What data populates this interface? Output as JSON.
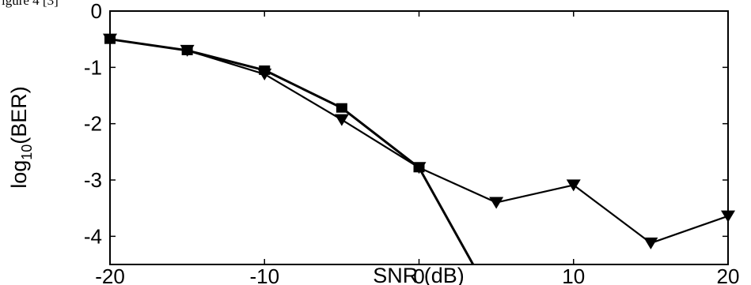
{
  "header_fragment": "igure 4 [3]",
  "chart_data": {
    "type": "line",
    "xlabel": "SNR (dB)",
    "ylabel_main": "log",
    "ylabel_sub": "10",
    "ylabel_rest": "(BER)",
    "xlim": [
      -20,
      20
    ],
    "ylim": [
      -4.5,
      0
    ],
    "xticks": [
      -20,
      -10,
      0,
      10,
      20
    ],
    "xtick_labels": [
      "-20",
      "-10",
      "0",
      "10",
      "20"
    ],
    "yticks": [
      0,
      -1,
      -2,
      -3,
      -4
    ],
    "ytick_labels": [
      "0",
      "-1",
      "-2",
      "-3",
      "-4"
    ],
    "grid": false,
    "series": [
      {
        "marker": "square",
        "points": [
          [
            -20,
            -0.5
          ],
          [
            -15,
            -0.7
          ],
          [
            -10,
            -1.05
          ],
          [
            -5,
            -1.72
          ],
          [
            0,
            -2.78
          ],
          [
            3.5,
            -4.5
          ]
        ]
      },
      {
        "marker": "triangle-down",
        "points": [
          [
            -20,
            -0.5
          ],
          [
            -15,
            -0.7
          ],
          [
            -10,
            -1.12
          ],
          [
            -5,
            -1.93
          ],
          [
            0,
            -2.78
          ],
          [
            5,
            -3.4
          ],
          [
            10,
            -3.09
          ],
          [
            15,
            -4.12
          ],
          [
            20,
            -3.64
          ]
        ]
      }
    ],
    "line_color": "#000000"
  }
}
